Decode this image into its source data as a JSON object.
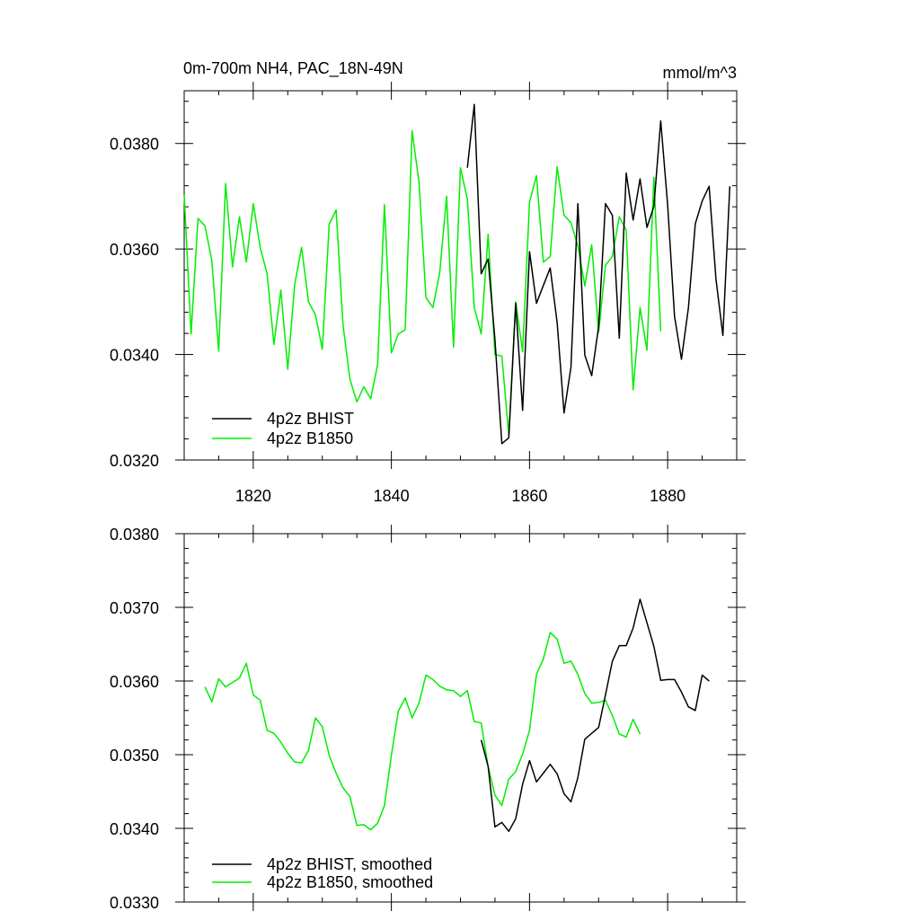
{
  "chart_data": [
    {
      "type": "line",
      "title_left": "0m-700m NH4, PAC_18N-49N",
      "title_right": "mmol/m^3",
      "xlim": [
        1810,
        1890
      ],
      "ylim": [
        0.032,
        0.039
      ],
      "x_ticks": [
        1820,
        1840,
        1860,
        1880
      ],
      "x_tick_labels": [
        "1820",
        "1840",
        "1860",
        "1880"
      ],
      "y_ticks": [
        0.032,
        0.034,
        0.036,
        0.038
      ],
      "y_tick_labels": [
        "0.0320",
        "0.0340",
        "0.0360",
        "0.0380"
      ],
      "legend_placement": "bottom-left",
      "colors": {
        "BHIST": "#000000",
        "B1850": "#00ee00"
      },
      "series": [
        {
          "name": "4p2z BHIST",
          "color": "#000000",
          "x": [
            1851,
            1852,
            1853,
            1854,
            1855,
            1856,
            1857,
            1858,
            1859,
            1860,
            1861,
            1862,
            1863,
            1864,
            1865,
            1866,
            1867,
            1868,
            1869,
            1870,
            1871,
            1872,
            1873,
            1874,
            1875,
            1876,
            1877,
            1878,
            1879,
            1880,
            1881,
            1882,
            1883,
            1884,
            1885,
            1886,
            1887,
            1888,
            1889
          ],
          "y": [
            0.03754,
            0.03874,
            0.03553,
            0.03581,
            0.03428,
            0.03231,
            0.03242,
            0.03497,
            0.03294,
            0.03595,
            0.03497,
            0.03531,
            0.03564,
            0.03461,
            0.03289,
            0.03376,
            0.03686,
            0.03399,
            0.0336,
            0.03453,
            0.03686,
            0.03664,
            0.03431,
            0.03744,
            0.03655,
            0.03733,
            0.03641,
            0.03681,
            0.03843,
            0.03684,
            0.03472,
            0.03391,
            0.03488,
            0.03648,
            0.03691,
            0.03719,
            0.03543,
            0.03436,
            0.03719
          ]
        },
        {
          "name": "4p2z B1850",
          "color": "#00ee00",
          "x": [
            1810,
            1811,
            1812,
            1813,
            1814,
            1815,
            1816,
            1817,
            1818,
            1819,
            1820,
            1821,
            1822,
            1823,
            1824,
            1825,
            1826,
            1827,
            1828,
            1829,
            1830,
            1831,
            1832,
            1833,
            1834,
            1835,
            1836,
            1837,
            1838,
            1839,
            1840,
            1841,
            1842,
            1843,
            1844,
            1845,
            1846,
            1847,
            1848,
            1849,
            1850,
            1851,
            1852,
            1853,
            1854,
            1855,
            1856,
            1857,
            1858,
            1859,
            1860,
            1861,
            1862,
            1863,
            1864,
            1865,
            1866,
            1867,
            1868,
            1869,
            1870,
            1871,
            1872,
            1873,
            1874,
            1875,
            1876,
            1877,
            1878,
            1879
          ],
          "y": [
            0.03703,
            0.03439,
            0.03658,
            0.03644,
            0.03578,
            0.03406,
            0.03724,
            0.03566,
            0.03661,
            0.03575,
            0.03686,
            0.03603,
            0.03553,
            0.03419,
            0.03522,
            0.03372,
            0.03533,
            0.03603,
            0.035,
            0.03475,
            0.0341,
            0.03647,
            0.03674,
            0.03456,
            0.03353,
            0.0331,
            0.03339,
            0.03316,
            0.03381,
            0.03684,
            0.03403,
            0.03439,
            0.03447,
            0.03824,
            0.03726,
            0.03508,
            0.03489,
            0.03555,
            0.037,
            0.03414,
            0.03754,
            0.03694,
            0.03489,
            0.03439,
            0.03628,
            0.034,
            0.03397,
            0.03246,
            0.035,
            0.03405,
            0.03689,
            0.03739,
            0.03575,
            0.03586,
            0.03756,
            0.03664,
            0.0365,
            0.03606,
            0.0353,
            0.03608,
            0.03442,
            0.03569,
            0.03586,
            0.03661,
            0.03636,
            0.03333,
            0.03489,
            0.03408,
            0.03736,
            0.03444
          ]
        }
      ]
    },
    {
      "type": "line",
      "xlim": [
        1810,
        1890
      ],
      "ylim": [
        0.033,
        0.038
      ],
      "x_ticks": [
        1820,
        1840,
        1860,
        1880
      ],
      "y_ticks": [
        0.033,
        0.034,
        0.035,
        0.036,
        0.037,
        0.038
      ],
      "y_tick_labels": [
        "0.0330",
        "0.0340",
        "0.0350",
        "0.0360",
        "0.0370",
        "0.0380"
      ],
      "legend_placement": "bottom-left",
      "series": [
        {
          "name": "4p2z BHIST, smoothed",
          "color": "#000000",
          "x": [
            1853,
            1854,
            1855,
            1856,
            1857,
            1858,
            1859,
            1860,
            1861,
            1862,
            1863,
            1864,
            1865,
            1866,
            1867,
            1868,
            1869,
            1870,
            1871,
            1872,
            1873,
            1874,
            1875,
            1876,
            1877,
            1878,
            1879,
            1880,
            1881,
            1882,
            1883,
            1884,
            1885,
            1886
          ],
          "y": [
            0.0352,
            0.03484,
            0.03402,
            0.03408,
            0.03396,
            0.03413,
            0.0346,
            0.03492,
            0.03463,
            0.03475,
            0.03487,
            0.03474,
            0.03447,
            0.03436,
            0.03469,
            0.03521,
            0.03529,
            0.03537,
            0.03581,
            0.03627,
            0.03648,
            0.03648,
            0.03672,
            0.03711,
            0.03679,
            0.03647,
            0.03601,
            0.03602,
            0.03602,
            0.03585,
            0.03565,
            0.0356,
            0.03608,
            0.036
          ]
        },
        {
          "name": "4p2z B1850, smoothed",
          "color": "#00ee00",
          "x": [
            1813,
            1814,
            1815,
            1816,
            1817,
            1818,
            1819,
            1820,
            1821,
            1822,
            1823,
            1824,
            1825,
            1826,
            1827,
            1828,
            1829,
            1830,
            1831,
            1832,
            1833,
            1834,
            1835,
            1836,
            1837,
            1838,
            1839,
            1840,
            1841,
            1842,
            1843,
            1844,
            1845,
            1846,
            1847,
            1848,
            1849,
            1850,
            1851,
            1852,
            1853,
            1854,
            1855,
            1856,
            1857,
            1858,
            1859,
            1860,
            1861,
            1862,
            1863,
            1864,
            1865,
            1866,
            1867,
            1868,
            1869,
            1870,
            1871,
            1872,
            1873,
            1874,
            1875,
            1876
          ],
          "y": [
            0.03592,
            0.03572,
            0.03603,
            0.03592,
            0.03598,
            0.03604,
            0.03624,
            0.03581,
            0.03574,
            0.03533,
            0.03529,
            0.03517,
            0.03502,
            0.0349,
            0.03489,
            0.03506,
            0.0355,
            0.03538,
            0.03499,
            0.03475,
            0.03455,
            0.03443,
            0.03404,
            0.03405,
            0.03398,
            0.03407,
            0.03431,
            0.03499,
            0.03559,
            0.03577,
            0.0355,
            0.0357,
            0.03608,
            0.03602,
            0.03593,
            0.03588,
            0.03587,
            0.03579,
            0.03587,
            0.03545,
            0.03543,
            0.03484,
            0.03445,
            0.03431,
            0.03467,
            0.03477,
            0.03501,
            0.03533,
            0.03609,
            0.0363,
            0.03666,
            0.03657,
            0.03624,
            0.03627,
            0.03609,
            0.03583,
            0.0357,
            0.03571,
            0.03574,
            0.03553,
            0.03528,
            0.03524,
            0.03548,
            0.03528
          ]
        }
      ]
    }
  ]
}
